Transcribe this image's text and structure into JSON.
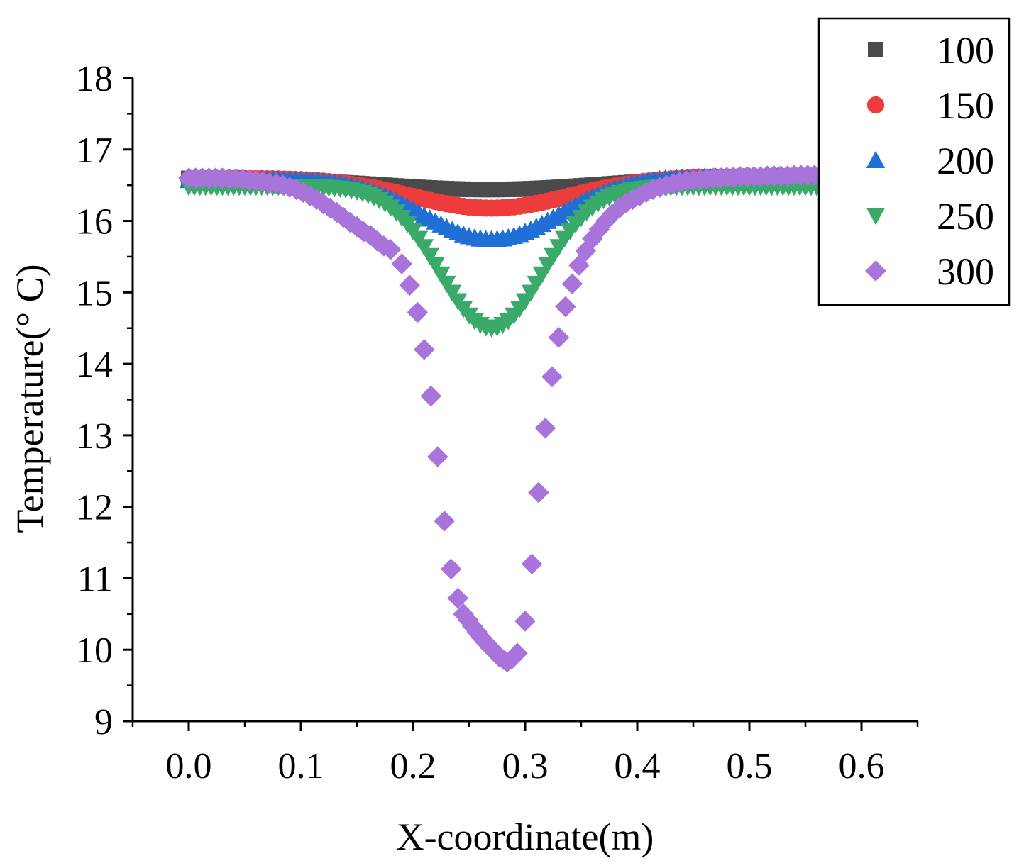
{
  "chart_data": {
    "type": "scatter",
    "title": "",
    "xlabel": "X-coordinate(m)",
    "ylabel": "Temperature(° C)",
    "xlim": [
      -0.05,
      0.65
    ],
    "ylim": [
      9,
      18
    ],
    "xticks": [
      "0.0",
      "0.1",
      "0.2",
      "0.3",
      "0.4",
      "0.5",
      "0.6"
    ],
    "yticks": [
      "9",
      "10",
      "11",
      "12",
      "13",
      "14",
      "15",
      "16",
      "17",
      "18"
    ],
    "grid": false,
    "legend_position": "top-right",
    "series": [
      {
        "name": "100",
        "marker": "square",
        "color": "#4a4a4a",
        "x_range": [
          0,
          0.6
        ],
        "n_points": 120,
        "profile": {
          "base": 16.62,
          "depth": 0.18,
          "center": 0.27,
          "width": 0.14,
          "left_offset": -0.04
        }
      },
      {
        "name": "150",
        "marker": "circle",
        "color": "#ee3b3b",
        "x_range": [
          0,
          0.6
        ],
        "n_points": 120,
        "profile": {
          "base": 16.62,
          "depth": 0.44,
          "center": 0.27,
          "width": 0.1,
          "left_offset": -0.06
        }
      },
      {
        "name": "200",
        "marker": "triangle-up",
        "color": "#1f6fd6",
        "x_range": [
          0,
          0.6
        ],
        "n_points": 120,
        "profile": {
          "base": 16.62,
          "depth": 0.88,
          "center": 0.27,
          "width": 0.085,
          "left_offset": -0.1
        }
      },
      {
        "name": "250",
        "marker": "triangle-down",
        "color": "#3aaa6a",
        "x_range": [
          0,
          0.6
        ],
        "n_points": 120,
        "profile": {
          "base": 16.48,
          "depth": 1.98,
          "center": 0.27,
          "width": 0.065,
          "left_offset": 0
        }
      },
      {
        "name": "300",
        "marker": "diamond",
        "color": "#a874dc",
        "x": [
          0.0,
          0.006,
          0.012,
          0.018,
          0.024,
          0.03,
          0.036,
          0.042,
          0.048,
          0.054,
          0.06,
          0.066,
          0.072,
          0.078,
          0.084,
          0.09,
          0.096,
          0.102,
          0.108,
          0.114,
          0.12,
          0.126,
          0.132,
          0.138,
          0.144,
          0.15,
          0.156,
          0.162,
          0.168,
          0.174,
          0.18,
          0.19,
          0.197,
          0.204,
          0.21,
          0.216,
          0.222,
          0.228,
          0.234,
          0.24,
          0.245,
          0.249,
          0.253,
          0.257,
          0.261,
          0.265,
          0.269,
          0.273,
          0.277,
          0.281,
          0.284,
          0.288,
          0.293,
          0.3,
          0.306,
          0.312,
          0.318,
          0.324,
          0.33,
          0.336,
          0.342,
          0.348,
          0.354,
          0.36,
          0.366,
          0.372,
          0.378,
          0.384,
          0.39,
          0.396,
          0.402,
          0.408,
          0.414,
          0.42,
          0.426,
          0.432,
          0.438,
          0.444,
          0.45,
          0.456,
          0.462,
          0.468,
          0.474,
          0.48,
          0.486,
          0.492,
          0.498,
          0.504,
          0.51,
          0.516,
          0.522,
          0.528,
          0.534,
          0.54,
          0.546,
          0.552,
          0.558,
          0.564,
          0.57,
          0.576,
          0.582,
          0.588,
          0.594,
          0.6
        ],
        "y": [
          16.6,
          16.6,
          16.6,
          16.6,
          16.6,
          16.6,
          16.59,
          16.59,
          16.58,
          16.57,
          16.56,
          16.55,
          16.53,
          16.52,
          16.5,
          16.47,
          16.44,
          16.4,
          16.35,
          16.3,
          16.24,
          16.18,
          16.12,
          16.05,
          15.98,
          15.92,
          15.85,
          15.8,
          15.72,
          15.65,
          15.6,
          15.4,
          15.1,
          14.72,
          14.2,
          13.55,
          12.7,
          11.8,
          11.13,
          10.72,
          10.5,
          10.42,
          10.33,
          10.25,
          10.17,
          10.1,
          10.03,
          9.97,
          9.9,
          9.86,
          9.83,
          9.87,
          9.95,
          10.4,
          11.2,
          12.2,
          13.1,
          13.82,
          14.37,
          14.8,
          15.12,
          15.38,
          15.58,
          15.75,
          15.88,
          16.0,
          16.1,
          16.18,
          16.25,
          16.3,
          16.35,
          16.4,
          16.44,
          16.47,
          16.5,
          16.52,
          16.54,
          16.56,
          16.57,
          16.58,
          16.59,
          16.6,
          16.6,
          16.61,
          16.61,
          16.62,
          16.62,
          16.62,
          16.62,
          16.63,
          16.63,
          16.63,
          16.63,
          16.64,
          16.64,
          16.64,
          16.64,
          16.64,
          16.64,
          16.64,
          16.64,
          16.64,
          16.64,
          16.64
        ]
      }
    ]
  }
}
